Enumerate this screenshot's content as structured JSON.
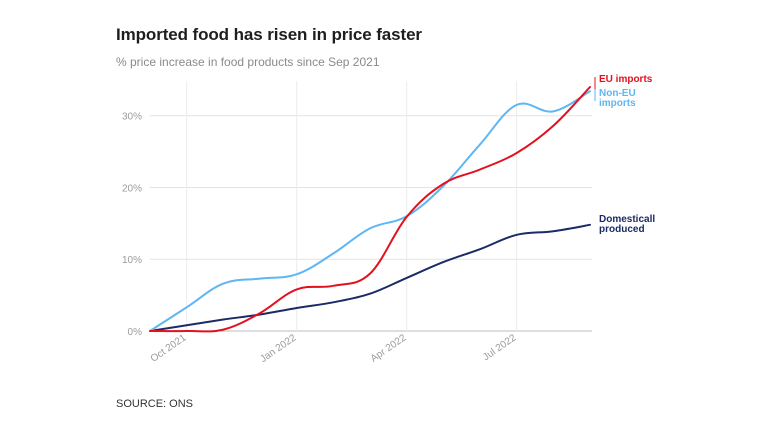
{
  "title": "Imported food has risen in price faster",
  "subtitle": "% price increase in food products since Sep 2021",
  "source": "SOURCE: ONS",
  "chart_data": {
    "type": "line",
    "title": "Imported food has risen in price faster",
    "subtitle": "% price increase in food products since Sep 2021",
    "xlabel": "",
    "ylabel": "",
    "x": [
      "2021-09",
      "2021-10",
      "2021-11",
      "2021-12",
      "2022-01",
      "2022-02",
      "2022-03",
      "2022-04",
      "2022-05",
      "2022-06",
      "2022-07",
      "2022-08",
      "2022-09"
    ],
    "x_tick_labels": [
      "Oct 2021",
      "Jan 2022",
      "Apr 2022",
      "Jul 2022"
    ],
    "x_tick_values": [
      "2021-10",
      "2022-01",
      "2022-04",
      "2022-07"
    ],
    "y_tick_labels": [
      "0%",
      "10%",
      "20%",
      "30%"
    ],
    "y_tick_values": [
      0,
      10,
      20,
      30
    ],
    "ylim": [
      0,
      34
    ],
    "grid": true,
    "series": [
      {
        "name": "EU imports",
        "color": "#e3101e",
        "values": [
          0,
          0,
          0.2,
          2.5,
          5.8,
          6.3,
          8.0,
          15.9,
          20.5,
          22.5,
          24.8,
          28.6,
          34.0
        ]
      },
      {
        "name": "Non-EU imports",
        "color": "#5eb6f2",
        "values": [
          0,
          3.3,
          6.6,
          7.3,
          7.9,
          10.8,
          14.3,
          16.0,
          20.2,
          26.0,
          31.5,
          30.6,
          33.4
        ]
      },
      {
        "name": "Domestically produced",
        "color": "#1b2b66",
        "values": [
          0,
          0.8,
          1.6,
          2.3,
          3.2,
          4.0,
          5.2,
          7.4,
          9.6,
          11.4,
          13.4,
          13.9,
          14.8
        ]
      }
    ],
    "legend": "labels at line ends (right)",
    "series_labels": [
      {
        "name": "EU imports",
        "lines": [
          "EU imports"
        ]
      },
      {
        "name": "Non-EU imports",
        "lines": [
          "Non-EU",
          "imports"
        ]
      },
      {
        "name": "Domestically produced",
        "lines": [
          "Domesticall",
          "produced"
        ]
      }
    ]
  }
}
